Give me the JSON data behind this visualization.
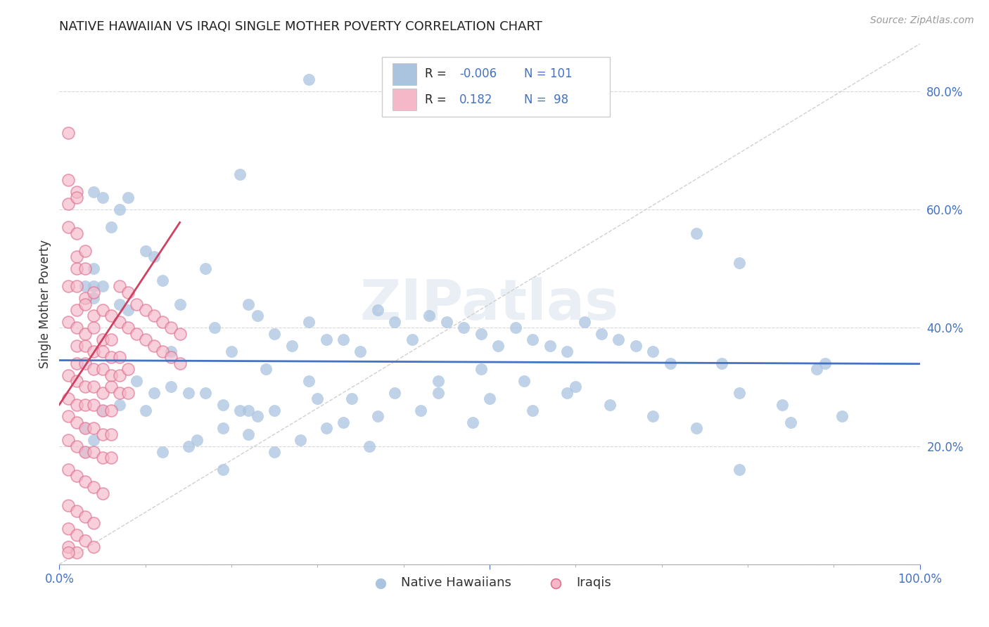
{
  "title": "NATIVE HAWAIIAN VS IRAQI SINGLE MOTHER POVERTY CORRELATION CHART",
  "source": "Source: ZipAtlas.com",
  "ylabel": "Single Mother Poverty",
  "yticks": [
    0.0,
    0.2,
    0.4,
    0.6,
    0.8
  ],
  "ytick_labels": [
    "",
    "20.0%",
    "40.0%",
    "60.0%",
    "80.0%"
  ],
  "xlim": [
    0.0,
    1.0
  ],
  "ylim": [
    0.0,
    0.88
  ],
  "watermark": "ZIPatlas",
  "blue_color": "#aac4e0",
  "blue_edge_color": "#aac4e0",
  "blue_line_color": "#4472c4",
  "pink_color": "#f4b8c8",
  "pink_edge_color": "#e07090",
  "pink_line_color": "#d04060",
  "blue_trend_slope": -0.006,
  "blue_trend_intercept": 0.345,
  "pink_trend_slope": 2.2,
  "pink_trend_intercept": 0.27,
  "pink_trend_xmax": 0.14,
  "ref_line_color": "#d0d0d0",
  "grid_color": "#d8d8d8",
  "blue_scatter": [
    [
      0.29,
      0.82
    ],
    [
      0.21,
      0.66
    ],
    [
      0.04,
      0.63
    ],
    [
      0.05,
      0.62
    ],
    [
      0.07,
      0.6
    ],
    [
      0.08,
      0.62
    ],
    [
      0.06,
      0.57
    ],
    [
      0.1,
      0.53
    ],
    [
      0.11,
      0.52
    ],
    [
      0.04,
      0.5
    ],
    [
      0.05,
      0.47
    ],
    [
      0.03,
      0.47
    ],
    [
      0.04,
      0.45
    ],
    [
      0.07,
      0.44
    ],
    [
      0.08,
      0.43
    ],
    [
      0.12,
      0.48
    ],
    [
      0.14,
      0.44
    ],
    [
      0.17,
      0.5
    ],
    [
      0.18,
      0.4
    ],
    [
      0.2,
      0.36
    ],
    [
      0.22,
      0.44
    ],
    [
      0.23,
      0.42
    ],
    [
      0.25,
      0.39
    ],
    [
      0.27,
      0.37
    ],
    [
      0.29,
      0.41
    ],
    [
      0.31,
      0.38
    ],
    [
      0.33,
      0.38
    ],
    [
      0.35,
      0.36
    ],
    [
      0.37,
      0.43
    ],
    [
      0.39,
      0.41
    ],
    [
      0.41,
      0.38
    ],
    [
      0.43,
      0.42
    ],
    [
      0.45,
      0.41
    ],
    [
      0.47,
      0.4
    ],
    [
      0.49,
      0.39
    ],
    [
      0.51,
      0.37
    ],
    [
      0.53,
      0.4
    ],
    [
      0.55,
      0.38
    ],
    [
      0.57,
      0.37
    ],
    [
      0.59,
      0.36
    ],
    [
      0.61,
      0.41
    ],
    [
      0.63,
      0.39
    ],
    [
      0.65,
      0.38
    ],
    [
      0.67,
      0.37
    ],
    [
      0.69,
      0.36
    ],
    [
      0.71,
      0.34
    ],
    [
      0.17,
      0.29
    ],
    [
      0.19,
      0.27
    ],
    [
      0.21,
      0.26
    ],
    [
      0.23,
      0.25
    ],
    [
      0.25,
      0.26
    ],
    [
      0.13,
      0.3
    ],
    [
      0.15,
      0.29
    ],
    [
      0.09,
      0.31
    ],
    [
      0.11,
      0.29
    ],
    [
      0.07,
      0.27
    ],
    [
      0.05,
      0.26
    ],
    [
      0.03,
      0.23
    ],
    [
      0.04,
      0.21
    ],
    [
      0.03,
      0.19
    ],
    [
      0.24,
      0.33
    ],
    [
      0.29,
      0.31
    ],
    [
      0.34,
      0.28
    ],
    [
      0.39,
      0.29
    ],
    [
      0.44,
      0.31
    ],
    [
      0.49,
      0.33
    ],
    [
      0.54,
      0.31
    ],
    [
      0.59,
      0.29
    ],
    [
      0.64,
      0.27
    ],
    [
      0.69,
      0.25
    ],
    [
      0.74,
      0.23
    ],
    [
      0.79,
      0.29
    ],
    [
      0.84,
      0.27
    ],
    [
      0.16,
      0.21
    ],
    [
      0.19,
      0.23
    ],
    [
      0.22,
      0.26
    ],
    [
      0.74,
      0.56
    ],
    [
      0.79,
      0.51
    ],
    [
      0.79,
      0.16
    ],
    [
      0.89,
      0.34
    ],
    [
      0.77,
      0.34
    ],
    [
      0.04,
      0.47
    ],
    [
      0.13,
      0.36
    ],
    [
      0.1,
      0.26
    ],
    [
      0.12,
      0.19
    ],
    [
      0.15,
      0.2
    ],
    [
      0.33,
      0.24
    ],
    [
      0.3,
      0.28
    ],
    [
      0.37,
      0.25
    ],
    [
      0.44,
      0.29
    ],
    [
      0.48,
      0.24
    ],
    [
      0.5,
      0.28
    ],
    [
      0.55,
      0.26
    ],
    [
      0.6,
      0.3
    ],
    [
      0.88,
      0.33
    ],
    [
      0.85,
      0.24
    ],
    [
      0.91,
      0.25
    ],
    [
      0.19,
      0.16
    ],
    [
      0.22,
      0.22
    ],
    [
      0.25,
      0.19
    ],
    [
      0.28,
      0.21
    ],
    [
      0.31,
      0.23
    ],
    [
      0.36,
      0.2
    ],
    [
      0.42,
      0.26
    ]
  ],
  "pink_scatter": [
    [
      0.01,
      0.73
    ],
    [
      0.01,
      0.65
    ],
    [
      0.02,
      0.63
    ],
    [
      0.01,
      0.61
    ],
    [
      0.02,
      0.62
    ],
    [
      0.01,
      0.57
    ],
    [
      0.02,
      0.56
    ],
    [
      0.02,
      0.52
    ],
    [
      0.03,
      0.53
    ],
    [
      0.02,
      0.5
    ],
    [
      0.03,
      0.5
    ],
    [
      0.01,
      0.47
    ],
    [
      0.02,
      0.47
    ],
    [
      0.03,
      0.45
    ],
    [
      0.04,
      0.46
    ],
    [
      0.02,
      0.43
    ],
    [
      0.03,
      0.44
    ],
    [
      0.04,
      0.42
    ],
    [
      0.05,
      0.43
    ],
    [
      0.01,
      0.41
    ],
    [
      0.02,
      0.4
    ],
    [
      0.03,
      0.39
    ],
    [
      0.04,
      0.4
    ],
    [
      0.05,
      0.38
    ],
    [
      0.06,
      0.38
    ],
    [
      0.02,
      0.37
    ],
    [
      0.03,
      0.37
    ],
    [
      0.04,
      0.36
    ],
    [
      0.05,
      0.36
    ],
    [
      0.06,
      0.35
    ],
    [
      0.07,
      0.35
    ],
    [
      0.02,
      0.34
    ],
    [
      0.03,
      0.34
    ],
    [
      0.04,
      0.33
    ],
    [
      0.05,
      0.33
    ],
    [
      0.06,
      0.32
    ],
    [
      0.07,
      0.32
    ],
    [
      0.08,
      0.33
    ],
    [
      0.01,
      0.32
    ],
    [
      0.02,
      0.31
    ],
    [
      0.03,
      0.3
    ],
    [
      0.04,
      0.3
    ],
    [
      0.05,
      0.29
    ],
    [
      0.06,
      0.3
    ],
    [
      0.07,
      0.29
    ],
    [
      0.08,
      0.29
    ],
    [
      0.01,
      0.28
    ],
    [
      0.02,
      0.27
    ],
    [
      0.03,
      0.27
    ],
    [
      0.04,
      0.27
    ],
    [
      0.05,
      0.26
    ],
    [
      0.06,
      0.26
    ],
    [
      0.01,
      0.25
    ],
    [
      0.02,
      0.24
    ],
    [
      0.03,
      0.23
    ],
    [
      0.04,
      0.23
    ],
    [
      0.05,
      0.22
    ],
    [
      0.06,
      0.22
    ],
    [
      0.01,
      0.21
    ],
    [
      0.02,
      0.2
    ],
    [
      0.03,
      0.19
    ],
    [
      0.04,
      0.19
    ],
    [
      0.05,
      0.18
    ],
    [
      0.06,
      0.18
    ],
    [
      0.01,
      0.16
    ],
    [
      0.02,
      0.15
    ],
    [
      0.03,
      0.14
    ],
    [
      0.04,
      0.13
    ],
    [
      0.05,
      0.12
    ],
    [
      0.01,
      0.1
    ],
    [
      0.02,
      0.09
    ],
    [
      0.03,
      0.08
    ],
    [
      0.04,
      0.07
    ],
    [
      0.01,
      0.06
    ],
    [
      0.02,
      0.05
    ],
    [
      0.03,
      0.04
    ],
    [
      0.04,
      0.03
    ],
    [
      0.01,
      0.03
    ],
    [
      0.02,
      0.02
    ],
    [
      0.01,
      0.02
    ],
    [
      0.06,
      0.42
    ],
    [
      0.07,
      0.41
    ],
    [
      0.08,
      0.4
    ],
    [
      0.09,
      0.39
    ],
    [
      0.1,
      0.38
    ],
    [
      0.11,
      0.37
    ],
    [
      0.12,
      0.36
    ],
    [
      0.13,
      0.35
    ],
    [
      0.14,
      0.34
    ],
    [
      0.09,
      0.44
    ],
    [
      0.1,
      0.43
    ],
    [
      0.11,
      0.42
    ],
    [
      0.12,
      0.41
    ],
    [
      0.13,
      0.4
    ],
    [
      0.14,
      0.39
    ],
    [
      0.07,
      0.47
    ],
    [
      0.08,
      0.46
    ]
  ]
}
